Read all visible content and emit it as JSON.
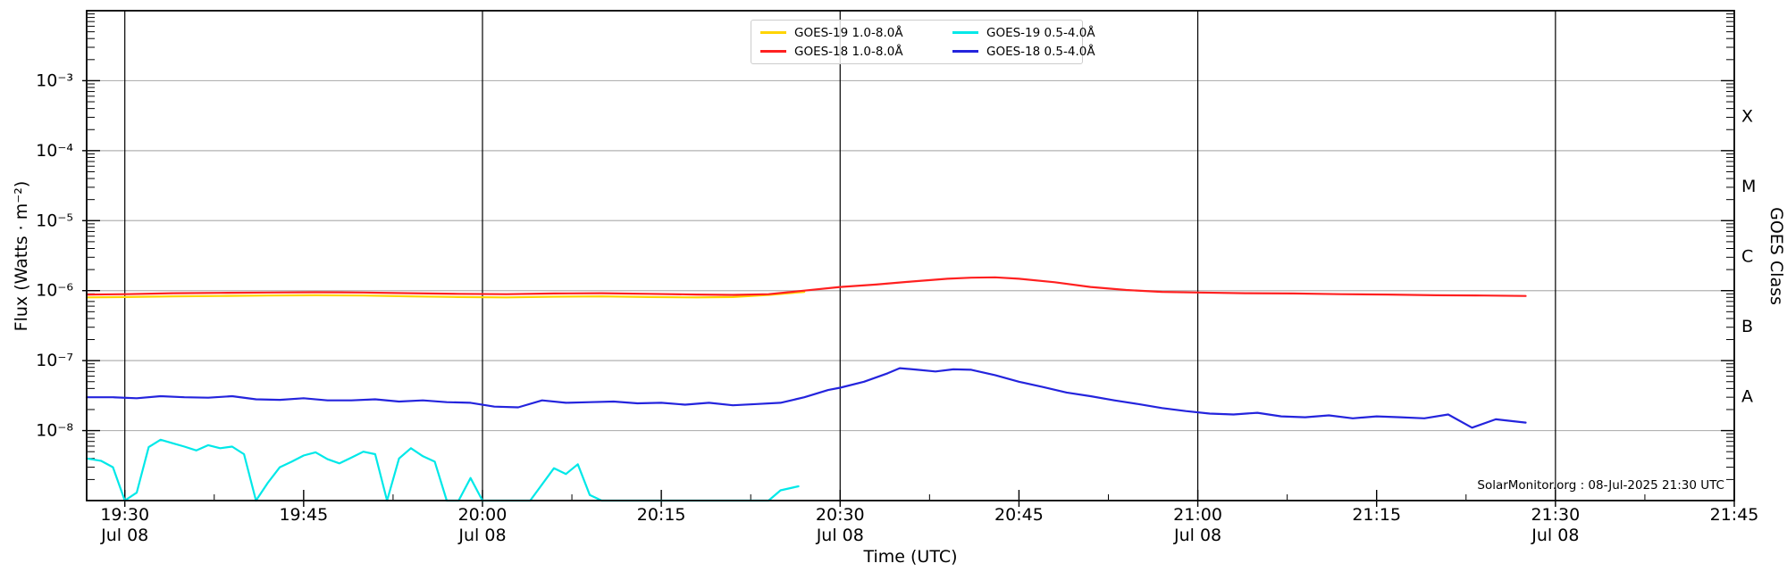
{
  "watermark": "SolarMonitor.org : 08-Jul-2025 21:30 UTC",
  "axes": {
    "x_label": "Time (UTC)",
    "y_label": "Flux (Watts · m⁻²)",
    "y2_label": "GOES Class"
  },
  "colors": {
    "goes19_long": "#ffd400",
    "goes18_long": "#ff2020",
    "goes19_short": "#00e8e8",
    "goes18_short": "#2424dd",
    "gridline": "#b2b2b2",
    "frame": "#000000"
  },
  "chart_data": {
    "type": "line",
    "title": "",
    "xlabel": "Time (UTC)",
    "ylabel": "Flux (Watts · m⁻²)",
    "ylabel_right": "GOES Class",
    "grid": true,
    "legend_position": "upper center",
    "x_axis": {
      "unit": "minutes since 00:00 UTC 08-Jul-2025",
      "start_minutes": 1166.8,
      "end_minutes": 1305,
      "major_ticks": [
        {
          "t": 1170,
          "label": "19:30",
          "date": "Jul 08"
        },
        {
          "t": 1185,
          "label": "19:45",
          "date": ""
        },
        {
          "t": 1200,
          "label": "20:00",
          "date": "Jul 08"
        },
        {
          "t": 1215,
          "label": "20:15",
          "date": ""
        },
        {
          "t": 1230,
          "label": "20:30",
          "date": "Jul 08"
        },
        {
          "t": 1245,
          "label": "20:45",
          "date": ""
        },
        {
          "t": 1260,
          "label": "21:00",
          "date": "Jul 08"
        },
        {
          "t": 1275,
          "label": "21:15",
          "date": ""
        },
        {
          "t": 1290,
          "label": "21:30",
          "date": "Jul 08"
        },
        {
          "t": 1305,
          "label": "21:45",
          "date": ""
        }
      ],
      "minor_tick_times": [
        1177.5,
        1192.5,
        1207.5,
        1222.5,
        1237.5,
        1252.5,
        1267.5,
        1282.5,
        1297.5
      ],
      "vline_times": [
        1170,
        1200,
        1230,
        1260,
        1290
      ]
    },
    "y_axis": {
      "scale": "log",
      "min": 1e-09,
      "max": 0.01,
      "tick_labels": [
        {
          "exp": -3,
          "label": "10⁻³"
        },
        {
          "exp": -4,
          "label": "10⁻⁴"
        },
        {
          "exp": -5,
          "label": "10⁻⁵"
        },
        {
          "exp": -6,
          "label": "10⁻⁶"
        },
        {
          "exp": -7,
          "label": "10⁻⁷"
        },
        {
          "exp": -8,
          "label": "10⁻⁸"
        }
      ]
    },
    "right_axis": {
      "label": "GOES Class",
      "class_labels": [
        {
          "label": "X",
          "center_exp": -3.5
        },
        {
          "label": "M",
          "center_exp": -4.5
        },
        {
          "label": "C",
          "center_exp": -5.5
        },
        {
          "label": "B",
          "center_exp": -6.5
        },
        {
          "label": "A",
          "center_exp": -7.5
        }
      ]
    },
    "legend": {
      "entries": [
        {
          "label": "GOES-19 1.0-8.0Å",
          "color_key": "goes19_long"
        },
        {
          "label": "GOES-18 1.0-8.0Å",
          "color_key": "goes18_long"
        },
        {
          "label": "GOES-19 0.5-4.0Å",
          "color_key": "goes19_short"
        },
        {
          "label": "GOES-18 0.5-4.0Å",
          "color_key": "goes18_short"
        }
      ]
    },
    "series": [
      {
        "id": "goes19_long",
        "name": "GOES-19 1.0-8.0Å",
        "color_key": "goes19_long",
        "points": [
          [
            1166.8,
            8e-07
          ],
          [
            1170,
            8.1e-07
          ],
          [
            1174,
            8.3e-07
          ],
          [
            1178,
            8.4e-07
          ],
          [
            1182,
            8.5e-07
          ],
          [
            1186,
            8.6e-07
          ],
          [
            1190,
            8.5e-07
          ],
          [
            1194,
            8.3e-07
          ],
          [
            1198,
            8.1e-07
          ],
          [
            1202,
            8e-07
          ],
          [
            1206,
            8.2e-07
          ],
          [
            1210,
            8.3e-07
          ],
          [
            1214,
            8.1e-07
          ],
          [
            1218,
            8e-07
          ],
          [
            1221,
            8.1e-07
          ],
          [
            1224,
            8.7e-07
          ],
          [
            1227,
            9.6e-07
          ]
        ]
      },
      {
        "id": "goes19_short",
        "name": "GOES-19 0.5-4.0Å",
        "color_key": "goes19_short",
        "points": [
          [
            1166.8,
            4e-09
          ],
          [
            1168,
            3.7e-09
          ],
          [
            1169,
            3e-09
          ],
          [
            1170,
            8.5e-10
          ],
          [
            1171,
            1.3e-09
          ],
          [
            1172,
            5.8e-09
          ],
          [
            1173,
            7.4e-09
          ],
          [
            1174,
            6.6e-09
          ],
          [
            1175,
            5.9e-09
          ],
          [
            1176,
            5.2e-09
          ],
          [
            1177,
            6.2e-09
          ],
          [
            1178,
            5.6e-09
          ],
          [
            1179,
            5.9e-09
          ],
          [
            1180,
            4.6e-09
          ],
          [
            1181,
            8.5e-10
          ],
          [
            1182,
            1.8e-09
          ],
          [
            1183,
            3e-09
          ],
          [
            1184,
            3.6e-09
          ],
          [
            1185,
            4.4e-09
          ],
          [
            1186,
            4.9e-09
          ],
          [
            1187,
            3.9e-09
          ],
          [
            1188,
            3.4e-09
          ],
          [
            1189,
            4.1e-09
          ],
          [
            1190,
            5e-09
          ],
          [
            1191,
            4.6e-09
          ],
          [
            1192,
            8.5e-10
          ],
          [
            1193,
            4e-09
          ],
          [
            1194,
            5.6e-09
          ],
          [
            1195,
            4.3e-09
          ],
          [
            1196,
            3.6e-09
          ],
          [
            1197,
            8.5e-10
          ],
          [
            1198,
            8.5e-10
          ],
          [
            1199,
            2.1e-09
          ],
          [
            1200,
            8.5e-10
          ],
          [
            1202,
            8.5e-10
          ],
          [
            1204,
            8.5e-10
          ],
          [
            1206,
            2.9e-09
          ],
          [
            1207,
            2.4e-09
          ],
          [
            1208,
            3.3e-09
          ],
          [
            1209,
            1.2e-09
          ],
          [
            1210,
            8.5e-10
          ],
          [
            1214,
            8.5e-10
          ],
          [
            1218,
            8.5e-10
          ],
          [
            1222,
            8.5e-10
          ],
          [
            1224,
            8.5e-10
          ],
          [
            1225,
            1.4e-09
          ],
          [
            1226.5,
            1.6e-09
          ]
        ]
      },
      {
        "id": "goes18_long",
        "name": "GOES-18 1.0-8.0Å",
        "color_key": "goes18_long",
        "points": [
          [
            1166.8,
            8.8e-07
          ],
          [
            1170,
            8.9e-07
          ],
          [
            1174,
            9.2e-07
          ],
          [
            1178,
            9.3e-07
          ],
          [
            1182,
            9.4e-07
          ],
          [
            1186,
            9.5e-07
          ],
          [
            1190,
            9.4e-07
          ],
          [
            1194,
            9.2e-07
          ],
          [
            1198,
            9e-07
          ],
          [
            1202,
            8.9e-07
          ],
          [
            1206,
            9.1e-07
          ],
          [
            1210,
            9.2e-07
          ],
          [
            1214,
            9e-07
          ],
          [
            1218,
            8.8e-07
          ],
          [
            1221,
            8.7e-07
          ],
          [
            1224,
            8.9e-07
          ],
          [
            1227,
            1e-06
          ],
          [
            1230,
            1.13e-06
          ],
          [
            1233,
            1.22e-06
          ],
          [
            1236,
            1.35e-06
          ],
          [
            1239,
            1.48e-06
          ],
          [
            1241,
            1.53e-06
          ],
          [
            1243,
            1.55e-06
          ],
          [
            1245,
            1.48e-06
          ],
          [
            1248,
            1.32e-06
          ],
          [
            1251,
            1.13e-06
          ],
          [
            1254,
            1.02e-06
          ],
          [
            1257,
            9.6e-07
          ],
          [
            1260,
            9.4e-07
          ],
          [
            1264,
            9.2e-07
          ],
          [
            1268,
            9.1e-07
          ],
          [
            1272,
            8.9e-07
          ],
          [
            1276,
            8.8e-07
          ],
          [
            1280,
            8.6e-07
          ],
          [
            1284,
            8.5e-07
          ],
          [
            1287.5,
            8.4e-07
          ]
        ]
      },
      {
        "id": "goes18_short",
        "name": "GOES-18 0.5-4.0Å",
        "color_key": "goes18_short",
        "points": [
          [
            1166.8,
            3e-08
          ],
          [
            1169,
            3e-08
          ],
          [
            1171,
            2.9e-08
          ],
          [
            1173,
            3.1e-08
          ],
          [
            1175,
            3e-08
          ],
          [
            1177,
            2.95e-08
          ],
          [
            1179,
            3.1e-08
          ],
          [
            1181,
            2.8e-08
          ],
          [
            1183,
            2.75e-08
          ],
          [
            1185,
            2.9e-08
          ],
          [
            1187,
            2.7e-08
          ],
          [
            1189,
            2.7e-08
          ],
          [
            1191,
            2.8e-08
          ],
          [
            1193,
            2.6e-08
          ],
          [
            1195,
            2.7e-08
          ],
          [
            1197,
            2.55e-08
          ],
          [
            1199,
            2.5e-08
          ],
          [
            1201,
            2.2e-08
          ],
          [
            1203,
            2.15e-08
          ],
          [
            1205,
            2.7e-08
          ],
          [
            1207,
            2.5e-08
          ],
          [
            1209,
            2.55e-08
          ],
          [
            1211,
            2.6e-08
          ],
          [
            1213,
            2.45e-08
          ],
          [
            1215,
            2.5e-08
          ],
          [
            1217,
            2.35e-08
          ],
          [
            1219,
            2.5e-08
          ],
          [
            1221,
            2.3e-08
          ],
          [
            1223,
            2.4e-08
          ],
          [
            1225,
            2.5e-08
          ],
          [
            1227,
            3e-08
          ],
          [
            1229,
            3.8e-08
          ],
          [
            1230,
            4.1e-08
          ],
          [
            1232,
            5e-08
          ],
          [
            1234,
            6.6e-08
          ],
          [
            1235,
            7.8e-08
          ],
          [
            1236.5,
            7.4e-08
          ],
          [
            1238,
            7e-08
          ],
          [
            1239.5,
            7.5e-08
          ],
          [
            1241,
            7.4e-08
          ],
          [
            1243,
            6.2e-08
          ],
          [
            1245,
            5e-08
          ],
          [
            1247,
            4.2e-08
          ],
          [
            1249,
            3.5e-08
          ],
          [
            1251,
            3.1e-08
          ],
          [
            1253,
            2.7e-08
          ],
          [
            1255,
            2.4e-08
          ],
          [
            1257,
            2.1e-08
          ],
          [
            1259,
            1.9e-08
          ],
          [
            1261,
            1.75e-08
          ],
          [
            1263,
            1.7e-08
          ],
          [
            1265,
            1.8e-08
          ],
          [
            1267,
            1.6e-08
          ],
          [
            1269,
            1.55e-08
          ],
          [
            1271,
            1.65e-08
          ],
          [
            1273,
            1.5e-08
          ],
          [
            1275,
            1.6e-08
          ],
          [
            1277,
            1.55e-08
          ],
          [
            1279,
            1.5e-08
          ],
          [
            1281,
            1.7e-08
          ],
          [
            1283,
            1.1e-08
          ],
          [
            1285,
            1.45e-08
          ],
          [
            1287.5,
            1.3e-08
          ]
        ]
      }
    ]
  }
}
